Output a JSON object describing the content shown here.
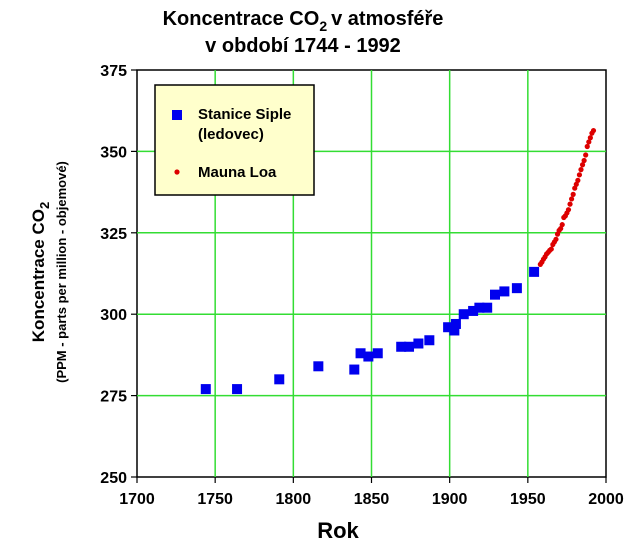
{
  "chart_data": {
    "type": "scatter",
    "title_line1_pre": "Koncentrace CO",
    "title_line1_sub": "2",
    "title_line1_post": "v atmosféře",
    "title_line2": "v období 1744 - 1992",
    "xlabel": "Rok",
    "ylabel_line1_pre": "Koncentrace CO",
    "ylabel_line1_sub": "2",
    "ylabel_line2": "(PPM - parts per million - objemové)",
    "xlim": [
      1700,
      2000
    ],
    "ylim": [
      250,
      375
    ],
    "xticks": [
      "1700",
      "1750",
      "1800",
      "1850",
      "1900",
      "1950",
      "2000"
    ],
    "yticks": [
      "250",
      "275",
      "300",
      "325",
      "350",
      "375"
    ],
    "grid": true,
    "legend_position": "top-left",
    "series": [
      {
        "name": "Stanice Siple (ledovec)",
        "color": "#0000ee",
        "marker": "square",
        "x": [
          1744,
          1764,
          1791,
          1816,
          1839,
          1843,
          1848,
          1854,
          1869,
          1874,
          1880,
          1887,
          1899,
          1903,
          1904,
          1909,
          1915,
          1919,
          1924,
          1929,
          1935,
          1943,
          1954
        ],
        "y": [
          277,
          277,
          280,
          284,
          283,
          288,
          287,
          288,
          290,
          290,
          291,
          292,
          296,
          295,
          297,
          300,
          301,
          302,
          302,
          306,
          307,
          308,
          313
        ]
      },
      {
        "name": "Mauna Loa",
        "color": "#dd0000",
        "marker": "dot",
        "x": [
          1958,
          1959,
          1960,
          1961,
          1962,
          1963,
          1964,
          1965,
          1966,
          1967,
          1968,
          1969,
          1970,
          1971,
          1972,
          1973,
          1974,
          1975,
          1976,
          1977,
          1978,
          1979,
          1980,
          1981,
          1982,
          1983,
          1984,
          1985,
          1986,
          1987,
          1988,
          1989,
          1990,
          1991,
          1992
        ],
        "y": [
          315.3,
          316.0,
          316.9,
          317.6,
          318.5,
          319.0,
          319.6,
          320.0,
          321.4,
          322.2,
          323.0,
          324.6,
          325.7,
          326.3,
          327.5,
          329.7,
          330.2,
          331.1,
          332.1,
          333.8,
          335.4,
          336.8,
          338.7,
          339.9,
          341.1,
          342.8,
          344.4,
          345.9,
          347.2,
          348.9,
          351.5,
          352.9,
          354.2,
          355.6,
          356.4
        ]
      }
    ]
  },
  "legend": {
    "item1_line1": "Stanice Siple",
    "item1_line2": "(ledovec)",
    "item2": "Mauna Loa"
  }
}
